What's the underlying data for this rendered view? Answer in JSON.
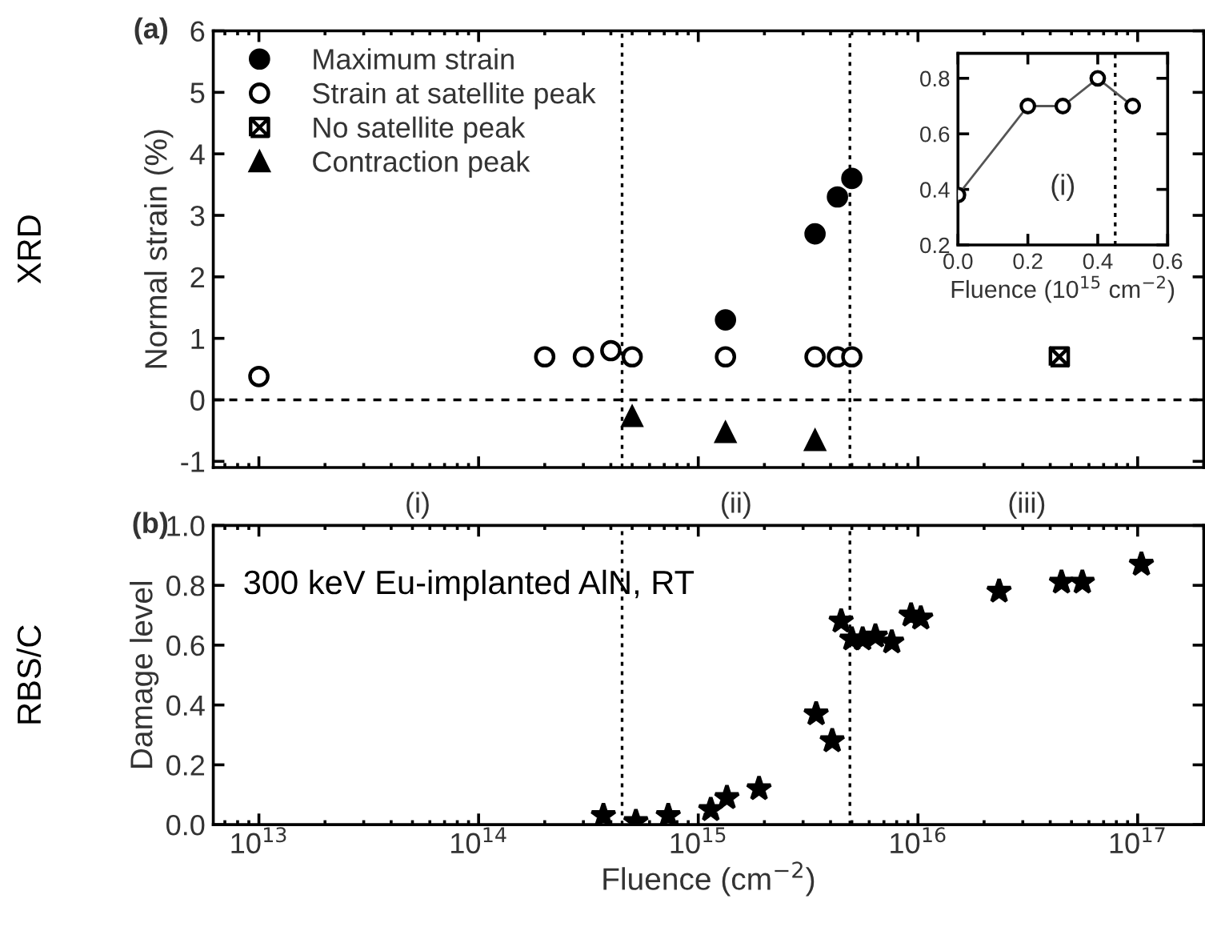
{
  "chart_data": [
    {
      "type": "scatter",
      "ylabel": "Normal strain (%)",
      "log": "x",
      "xlim": [
        6200000000000.0,
        2e+17
      ],
      "xticks": [
        10000000000000.0,
        100000000000000.0,
        1000000000000000.0,
        1e+16,
        1e+17
      ],
      "ylim": [
        -1.1,
        6
      ],
      "yticks": [
        -1,
        0,
        1,
        2,
        3,
        4,
        5,
        6
      ],
      "tick_labels": "y",
      "legend": "top left",
      "grid": false,
      "annotations": [
        "(a)",
        "XRD"
      ],
      "ref_lines": [
        {
          "axis": "y",
          "value": 0,
          "line_style": "dashed",
          "color": "#000000"
        },
        {
          "axis": "x",
          "value": 450000000000000.0,
          "line_style": "dotted",
          "color": "#000000"
        },
        {
          "axis": "x",
          "value": 4900000000000000.0,
          "line_style": "dotted",
          "color": "#000000"
        }
      ],
      "series": [
        {
          "name": "Maximum strain",
          "marker": "circle",
          "color": "#000000",
          "x": [
            1330000000000000.0,
            3400000000000000.0,
            4300000000000000.0,
            5000000000000000.0
          ],
          "values": [
            1.3,
            2.7,
            3.3,
            3.6
          ]
        },
        {
          "name": "Strain at satellite peak",
          "marker": "circle-open",
          "color": "#000000",
          "x": [
            10000000000000.0,
            200000000000000.0,
            300000000000000.0,
            400000000000000.0,
            500000000000000.0,
            1330000000000000.0,
            3400000000000000.0,
            4300000000000000.0,
            5000000000000000.0
          ],
          "values": [
            0.38,
            0.7,
            0.7,
            0.8,
            0.7,
            0.7,
            0.7,
            0.7,
            0.7
          ]
        },
        {
          "name": "No satellite peak",
          "marker": "cross",
          "color": "#000000",
          "x": [
            4.4e+16
          ],
          "values": [
            0.7
          ]
        },
        {
          "name": "Contraction peak",
          "marker": "triangle",
          "color": "#000000",
          "x": [
            500000000000000.0,
            1330000000000000.0,
            3400000000000000.0
          ],
          "values": [
            -0.27,
            -0.53,
            -0.66
          ]
        }
      ]
    },
    {
      "type": "line",
      "xlabel": "Fluence (10$^{15}$ cm$^{−2}$)",
      "xlim": [
        0,
        0.6
      ],
      "xticks": [
        {
          "value": 0,
          "label": "0.0"
        },
        {
          "value": 0.2,
          "label": "0.2"
        },
        {
          "value": 0.4,
          "label": "0.4"
        },
        {
          "value": 0.6,
          "label": "0.6"
        }
      ],
      "ylim": [
        0.2,
        0.89
      ],
      "yticks": [
        {
          "value": 0.2,
          "label": "0.2"
        },
        {
          "value": 0.4,
          "label": "0.4"
        },
        {
          "value": 0.6,
          "label": "0.6"
        },
        {
          "value": 0.8,
          "label": "0.8"
        }
      ],
      "grid": false,
      "marker": "circle-open",
      "annotations": [
        "(i)"
      ],
      "ref_lines": [
        {
          "axis": "x",
          "value": 0.45,
          "line_style": "dotted",
          "color": "#000000"
        }
      ],
      "series": [
        {
          "color": "#555555",
          "x": [
            0,
            0.2,
            0.3,
            0.4,
            0.5
          ],
          "values": [
            0.38,
            0.7,
            0.7,
            0.8,
            0.7
          ]
        }
      ]
    },
    {
      "type": "scatter",
      "xlabel": "Fluence (cm$^{−2}$)",
      "ylabel": "Damage level",
      "log": "x",
      "xlim": [
        6200000000000.0,
        2e+17
      ],
      "xticks": [
        {
          "value": 10000000000000.0,
          "label": "10$^{13}$"
        },
        {
          "value": 100000000000000.0,
          "label": "10$^{14}$"
        },
        {
          "value": 1000000000000000.0,
          "label": "10$^{15}$"
        },
        {
          "value": 1e+16,
          "label": "10$^{16}$"
        },
        {
          "value": 1e+17,
          "label": "10$^{17}$"
        }
      ],
      "ylim": [
        0,
        1
      ],
      "yticks": [
        {
          "value": 0,
          "label": "0.0"
        },
        {
          "value": 0.2,
          "label": "0.2"
        },
        {
          "value": 0.4,
          "label": "0.4"
        },
        {
          "value": 0.6,
          "label": "0.6"
        },
        {
          "value": 0.8,
          "label": "0.8"
        },
        {
          "value": 1,
          "label": "1.0"
        }
      ],
      "grid": false,
      "marker": "star",
      "annotations": [
        "(b)",
        "RBS/C",
        "300 keV Eu-implanted AlN, RT",
        "(i)",
        "(ii)",
        "(iii)"
      ],
      "ref_lines": [
        {
          "axis": "x",
          "value": 450000000000000.0,
          "line_style": "dotted",
          "color": "#000000"
        },
        {
          "axis": "x",
          "value": 4900000000000000.0,
          "line_style": "dotted",
          "color": "#000000"
        }
      ],
      "series": [
        {
          "color": "#000000",
          "x": [
            370000000000000.0,
            520000000000000.0,
            730000000000000.0,
            1140000000000000.0,
            1350000000000000.0,
            1890000000000000.0,
            3440000000000000.0,
            4070000000000000.0,
            4470000000000000.0,
            5000000000000000.0,
            5600000000000000.0,
            6400000000000000.0,
            7600000000000000.0,
            9300000000000000.0,
            1.03e+16,
            2.34e+16,
            4.5e+16,
            5.6e+16,
            1.04e+17
          ],
          "values": [
            0.03,
            0.01,
            0.03,
            0.05,
            0.09,
            0.12,
            0.37,
            0.28,
            0.68,
            0.62,
            0.62,
            0.63,
            0.61,
            0.7,
            0.69,
            0.78,
            0.81,
            0.81,
            0.87
          ]
        }
      ]
    }
  ]
}
